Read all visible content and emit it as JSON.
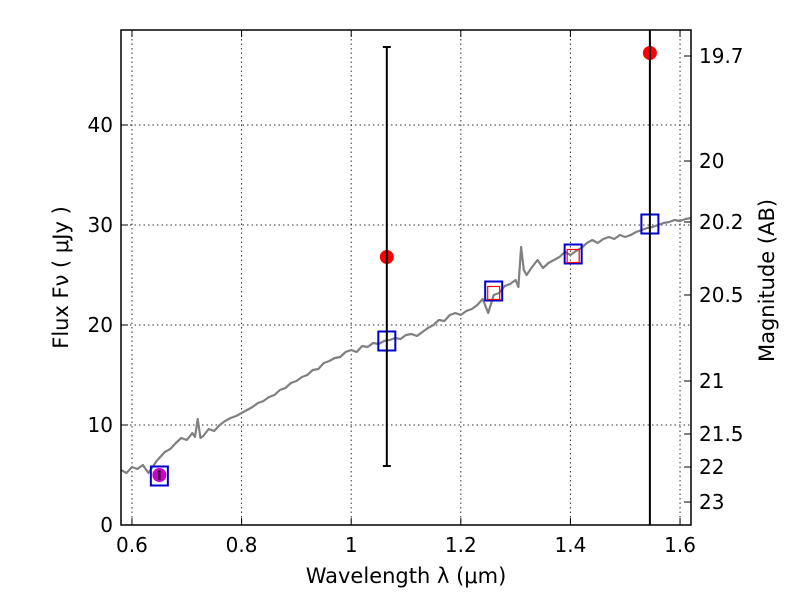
{
  "chart_data": {
    "type": "scatter",
    "title": "",
    "xlabel": "Wavelength  λ (μm)",
    "ylabel": "Flux  Fν  ( μJy )",
    "y2label": "Magnitude (AB)",
    "xlim": [
      0.58,
      1.62
    ],
    "ylim": [
      0,
      49.5
    ],
    "grid": true,
    "x_ticks": [
      {
        "value": 0.6,
        "label": "0.6"
      },
      {
        "value": 0.8,
        "label": "0.8"
      },
      {
        "value": 1.0,
        "label": "1"
      },
      {
        "value": 1.2,
        "label": "1.2"
      },
      {
        "value": 1.4,
        "label": "1.4"
      },
      {
        "value": 1.6,
        "label": "1.6"
      }
    ],
    "y_ticks": [
      {
        "value": 0,
        "label": "0"
      },
      {
        "value": 10,
        "label": "10"
      },
      {
        "value": 20,
        "label": "20"
      },
      {
        "value": 30,
        "label": "30"
      },
      {
        "value": 40,
        "label": "40"
      }
    ],
    "y2_ticks": [
      {
        "flux": 46.9,
        "label": "19.7"
      },
      {
        "flux": 36.4,
        "label": "20"
      },
      {
        "flux": 30.3,
        "label": "20.2"
      },
      {
        "flux": 23.0,
        "label": "20.5"
      },
      {
        "flux": 14.4,
        "label": "21"
      },
      {
        "flux": 9.1,
        "label": "21.5"
      },
      {
        "flux": 5.8,
        "label": "22"
      },
      {
        "flux": 2.3,
        "label": "23"
      }
    ],
    "series": [
      {
        "kind": "line",
        "color": "#808080",
        "points": [
          [
            0.58,
            5.5
          ],
          [
            0.59,
            5.2
          ],
          [
            0.6,
            5.8
          ],
          [
            0.61,
            5.6
          ],
          [
            0.62,
            6.0
          ],
          [
            0.63,
            5.2
          ],
          [
            0.645,
            6.4
          ],
          [
            0.66,
            7.3
          ],
          [
            0.67,
            7.6
          ],
          [
            0.68,
            8.2
          ],
          [
            0.69,
            8.7
          ],
          [
            0.7,
            8.5
          ],
          [
            0.71,
            9.2
          ],
          [
            0.715,
            8.8
          ],
          [
            0.72,
            10.6
          ],
          [
            0.725,
            8.7
          ],
          [
            0.73,
            8.9
          ],
          [
            0.74,
            9.6
          ],
          [
            0.75,
            9.4
          ],
          [
            0.76,
            10.0
          ],
          [
            0.77,
            10.4
          ],
          [
            0.78,
            10.7
          ],
          [
            0.79,
            10.9
          ],
          [
            0.8,
            11.2
          ],
          [
            0.81,
            11.5
          ],
          [
            0.82,
            11.8
          ],
          [
            0.83,
            12.2
          ],
          [
            0.84,
            12.4
          ],
          [
            0.85,
            12.8
          ],
          [
            0.86,
            13.0
          ],
          [
            0.87,
            13.5
          ],
          [
            0.88,
            13.7
          ],
          [
            0.89,
            14.2
          ],
          [
            0.9,
            14.4
          ],
          [
            0.91,
            14.8
          ],
          [
            0.92,
            15.0
          ],
          [
            0.93,
            15.5
          ],
          [
            0.94,
            15.6
          ],
          [
            0.95,
            16.2
          ],
          [
            0.96,
            16.4
          ],
          [
            0.97,
            16.7
          ],
          [
            0.98,
            16.8
          ],
          [
            0.99,
            17.3
          ],
          [
            1.0,
            17.5
          ],
          [
            1.01,
            17.3
          ],
          [
            1.02,
            17.9
          ],
          [
            1.03,
            17.8
          ],
          [
            1.04,
            18.2
          ],
          [
            1.05,
            18.1
          ],
          [
            1.06,
            18.4
          ],
          [
            1.07,
            18.5
          ],
          [
            1.08,
            18.7
          ],
          [
            1.09,
            18.6
          ],
          [
            1.1,
            19.0
          ],
          [
            1.11,
            19.1
          ],
          [
            1.12,
            18.9
          ],
          [
            1.13,
            19.3
          ],
          [
            1.14,
            19.7
          ],
          [
            1.15,
            20.0
          ],
          [
            1.16,
            20.5
          ],
          [
            1.17,
            20.4
          ],
          [
            1.18,
            21.0
          ],
          [
            1.19,
            21.2
          ],
          [
            1.2,
            21.0
          ],
          [
            1.21,
            21.4
          ],
          [
            1.22,
            21.6
          ],
          [
            1.23,
            22.0
          ],
          [
            1.24,
            22.6
          ],
          [
            1.25,
            21.2
          ],
          [
            1.26,
            23.0
          ],
          [
            1.27,
            23.2
          ],
          [
            1.28,
            23.9
          ],
          [
            1.29,
            24.1
          ],
          [
            1.3,
            24.5
          ],
          [
            1.305,
            23.8
          ],
          [
            1.31,
            27.8
          ],
          [
            1.315,
            25.5
          ],
          [
            1.32,
            25.0
          ],
          [
            1.33,
            25.8
          ],
          [
            1.34,
            26.5
          ],
          [
            1.35,
            25.7
          ],
          [
            1.36,
            26.2
          ],
          [
            1.37,
            26.5
          ],
          [
            1.38,
            26.8
          ],
          [
            1.39,
            27.3
          ],
          [
            1.4,
            27.0
          ],
          [
            1.41,
            27.4
          ],
          [
            1.42,
            27.7
          ],
          [
            1.43,
            28.2
          ],
          [
            1.44,
            28.5
          ],
          [
            1.45,
            28.2
          ],
          [
            1.46,
            28.6
          ],
          [
            1.47,
            28.8
          ],
          [
            1.48,
            28.6
          ],
          [
            1.49,
            29.0
          ],
          [
            1.5,
            28.8
          ],
          [
            1.51,
            29.0
          ],
          [
            1.52,
            29.3
          ],
          [
            1.53,
            29.5
          ],
          [
            1.54,
            29.7
          ],
          [
            1.55,
            29.8
          ],
          [
            1.56,
            30.0
          ],
          [
            1.57,
            30.2
          ],
          [
            1.58,
            30.3
          ],
          [
            1.59,
            30.5
          ],
          [
            1.6,
            30.4
          ],
          [
            1.61,
            30.6
          ],
          [
            1.62,
            30.7
          ]
        ]
      },
      {
        "kind": "points",
        "marker": "open-square",
        "color": "#0000cc",
        "points": [
          [
            0.65,
            4.9
          ],
          [
            1.065,
            18.4
          ],
          [
            1.26,
            23.4
          ],
          [
            1.405,
            27.1
          ],
          [
            1.545,
            30.1
          ]
        ]
      },
      {
        "kind": "points",
        "marker": "open-square-small",
        "color": "#ff0000",
        "points": [
          [
            1.26,
            23.2
          ],
          [
            1.405,
            26.9
          ]
        ]
      },
      {
        "kind": "points",
        "marker": "filled-circle",
        "color": "#ff0000",
        "points": [
          [
            1.065,
            26.8
          ],
          [
            1.545,
            47.2
          ]
        ]
      },
      {
        "kind": "points",
        "marker": "filled-circle",
        "color": "#cc00cc",
        "points": [
          [
            0.65,
            5.0
          ]
        ]
      },
      {
        "kind": "errorbars",
        "color": "#000000",
        "bars": [
          {
            "x": 1.065,
            "low": 5.9,
            "high": 47.8,
            "cap": true
          },
          {
            "x": 1.545,
            "low": 0,
            "high": 49.5,
            "cap": false
          },
          {
            "x": 0.65,
            "low": 4.5,
            "high": 5.5,
            "cap": false
          }
        ]
      }
    ]
  }
}
